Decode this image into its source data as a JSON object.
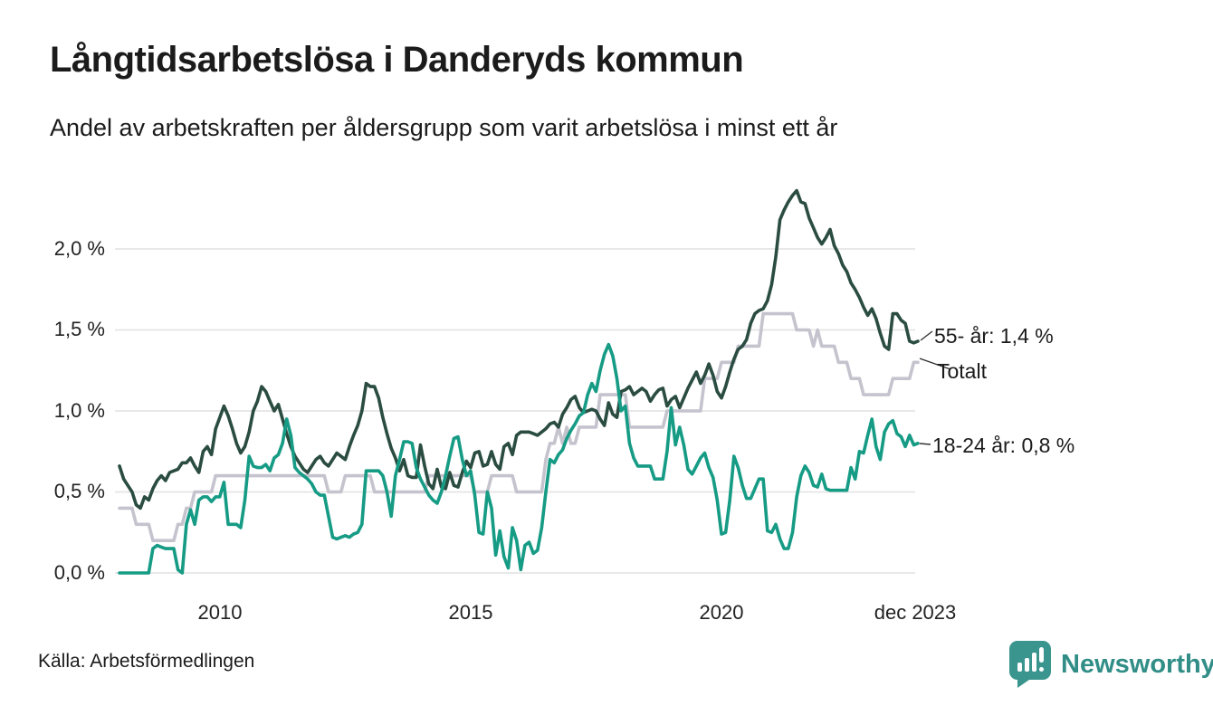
{
  "header": {
    "title": "Långtidsarbetslösa i Danderyds kommun",
    "subtitle": "Andel av arbetskraften per åldersgrupp som varit arbetslösa i minst ett år"
  },
  "chart_data": {
    "type": "line",
    "title": "Långtidsarbetslösa i Danderyds kommun",
    "subtitle": "Andel av arbetskraften per åldersgrupp som varit arbetslösa i minst ett år",
    "unit": "% av arbetskraften",
    "x_start": "2008-01",
    "x_end": "2023-12",
    "x_tick_labels": [
      "2010",
      "2015",
      "2020",
      "dec 2023"
    ],
    "y_tick_labels": [
      "0,0 %",
      "0,5 %",
      "1,0 %",
      "1,5 %",
      "2,0 %"
    ],
    "y_grid": [
      0,
      0.5,
      1.0,
      1.5,
      2.0
    ],
    "ylim": [
      0,
      2.45
    ],
    "grid": "horizontal",
    "legend_position": "right-end-labels",
    "series": [
      {
        "name": "Totalt",
        "color": "#c5c3cd",
        "end_label": "Totalt",
        "end_value": null,
        "values": [
          0.4,
          0.4,
          0.4,
          0.4,
          0.3,
          0.3,
          0.3,
          0.3,
          0.2,
          0.2,
          0.2,
          0.2,
          0.2,
          0.2,
          0.3,
          0.3,
          0.4,
          0.4,
          0.5,
          0.5,
          0.5,
          0.5,
          0.5,
          0.6,
          0.6,
          0.6,
          0.6,
          0.6,
          0.6,
          0.6,
          0.6,
          0.6,
          0.6,
          0.6,
          0.6,
          0.6,
          0.6,
          0.6,
          0.6,
          0.6,
          0.6,
          0.6,
          0.6,
          0.6,
          0.6,
          0.6,
          0.6,
          0.6,
          0.6,
          0.6,
          0.5,
          0.5,
          0.5,
          0.5,
          0.6,
          0.6,
          0.6,
          0.6,
          0.6,
          0.6,
          0.6,
          0.5,
          0.5,
          0.5,
          0.5,
          0.5,
          0.5,
          0.5,
          0.5,
          0.5,
          0.5,
          0.5,
          0.5,
          0.5,
          0.6,
          0.6,
          0.6,
          0.6,
          0.6,
          0.6,
          0.6,
          0.6,
          0.6,
          0.6,
          0.6,
          0.5,
          0.5,
          0.5,
          0.5,
          0.6,
          0.6,
          0.6,
          0.6,
          0.6,
          0.6,
          0.5,
          0.5,
          0.5,
          0.5,
          0.5,
          0.5,
          0.5,
          0.7,
          0.8,
          0.8,
          0.9,
          0.8,
          0.9,
          0.8,
          0.8,
          0.9,
          0.9,
          0.9,
          0.9,
          0.9,
          1.1,
          1.1,
          1.1,
          1.1,
          1.1,
          1.1,
          1.1,
          0.9,
          0.9,
          0.9,
          0.9,
          0.9,
          0.9,
          0.9,
          0.9,
          0.9,
          1.0,
          1.0,
          1.0,
          1.0,
          1.0,
          1.0,
          1.0,
          1.0,
          1.0,
          1.2,
          1.2,
          1.2,
          1.2,
          1.3,
          1.3,
          1.3,
          1.3,
          1.4,
          1.4,
          1.4,
          1.4,
          1.4,
          1.4,
          1.6,
          1.6,
          1.6,
          1.6,
          1.6,
          1.6,
          1.6,
          1.6,
          1.5,
          1.5,
          1.5,
          1.5,
          1.4,
          1.5,
          1.4,
          1.4,
          1.4,
          1.4,
          1.3,
          1.3,
          1.3,
          1.2,
          1.2,
          1.2,
          1.1,
          1.1,
          1.1,
          1.1,
          1.1,
          1.1,
          1.1,
          1.2,
          1.2,
          1.2,
          1.2,
          1.2,
          1.3,
          1.3
        ]
      },
      {
        "name": "55- år",
        "color": "#2a4c41",
        "end_label": "55- år: 1,4 %",
        "end_value": 1.4,
        "values": [
          0.66,
          0.58,
          0.54,
          0.5,
          0.42,
          0.4,
          0.47,
          0.45,
          0.52,
          0.57,
          0.6,
          0.57,
          0.62,
          0.63,
          0.64,
          0.68,
          0.68,
          0.71,
          0.66,
          0.62,
          0.75,
          0.78,
          0.73,
          0.89,
          0.96,
          1.03,
          0.97,
          0.89,
          0.8,
          0.74,
          0.78,
          0.87,
          1.0,
          1.06,
          1.15,
          1.12,
          1.06,
          1.0,
          1.04,
          0.95,
          0.86,
          0.78,
          0.72,
          0.68,
          0.64,
          0.62,
          0.66,
          0.7,
          0.72,
          0.68,
          0.66,
          0.7,
          0.74,
          0.72,
          0.7,
          0.78,
          0.85,
          0.91,
          1.0,
          1.17,
          1.15,
          1.15,
          1.08,
          0.96,
          0.86,
          0.77,
          0.71,
          0.63,
          0.7,
          0.6,
          0.59,
          0.59,
          0.79,
          0.66,
          0.55,
          0.52,
          0.64,
          0.53,
          0.52,
          0.62,
          0.54,
          0.53,
          0.62,
          0.69,
          0.65,
          0.74,
          0.75,
          0.66,
          0.67,
          0.75,
          0.67,
          0.64,
          0.78,
          0.8,
          0.73,
          0.85,
          0.87,
          0.87,
          0.87,
          0.86,
          0.85,
          0.87,
          0.89,
          0.92,
          0.93,
          0.9,
          0.98,
          1.02,
          1.07,
          1.09,
          1.02,
          0.99,
          1.0,
          1.01,
          1.0,
          0.95,
          0.91,
          1.05,
          0.98,
          0.96,
          1.12,
          1.13,
          1.15,
          1.1,
          1.12,
          1.14,
          1.12,
          1.06,
          1.1,
          1.13,
          1.14,
          1.03,
          1.07,
          1.09,
          1.02,
          1.08,
          1.14,
          1.19,
          1.24,
          1.17,
          1.22,
          1.29,
          1.22,
          1.12,
          1.08,
          1.15,
          1.24,
          1.32,
          1.38,
          1.4,
          1.44,
          1.54,
          1.6,
          1.62,
          1.63,
          1.68,
          1.78,
          1.95,
          2.18,
          2.24,
          2.29,
          2.33,
          2.36,
          2.29,
          2.28,
          2.19,
          2.13,
          2.07,
          2.03,
          2.07,
          2.12,
          2.02,
          1.97,
          1.9,
          1.86,
          1.79,
          1.75,
          1.7,
          1.64,
          1.59,
          1.63,
          1.57,
          1.48,
          1.4,
          1.38,
          1.6,
          1.6,
          1.56,
          1.54,
          1.43,
          1.42,
          1.43
        ]
      },
      {
        "name": "18-24 år",
        "color": "#169b85",
        "end_label": "18-24 år: 0,8 %",
        "end_value": 0.8,
        "values": [
          0.0,
          0.0,
          0.0,
          0.0,
          0.0,
          0.0,
          0.0,
          0.0,
          0.15,
          0.17,
          0.16,
          0.15,
          0.15,
          0.15,
          0.02,
          0.0,
          0.3,
          0.39,
          0.3,
          0.45,
          0.47,
          0.47,
          0.44,
          0.47,
          0.47,
          0.56,
          0.3,
          0.3,
          0.3,
          0.28,
          0.45,
          0.72,
          0.66,
          0.65,
          0.65,
          0.67,
          0.63,
          0.71,
          0.73,
          0.8,
          0.95,
          0.85,
          0.65,
          0.62,
          0.6,
          0.58,
          0.55,
          0.5,
          0.48,
          0.48,
          0.35,
          0.22,
          0.21,
          0.22,
          0.23,
          0.22,
          0.24,
          0.25,
          0.3,
          0.63,
          0.63,
          0.63,
          0.63,
          0.6,
          0.5,
          0.35,
          0.6,
          0.7,
          0.81,
          0.81,
          0.8,
          0.65,
          0.58,
          0.53,
          0.48,
          0.45,
          0.43,
          0.5,
          0.6,
          0.72,
          0.83,
          0.84,
          0.7,
          0.6,
          0.63,
          0.48,
          0.25,
          0.24,
          0.5,
          0.4,
          0.11,
          0.26,
          0.1,
          0.03,
          0.28,
          0.2,
          0.02,
          0.17,
          0.19,
          0.12,
          0.14,
          0.28,
          0.5,
          0.7,
          0.68,
          0.73,
          0.76,
          0.83,
          0.88,
          0.92,
          0.97,
          0.99,
          1.1,
          1.17,
          1.12,
          1.25,
          1.35,
          1.41,
          1.34,
          1.2,
          1.0,
          1.03,
          0.8,
          0.71,
          0.66,
          0.66,
          0.66,
          0.66,
          0.58,
          0.58,
          0.58,
          0.75,
          1.02,
          0.79,
          0.9,
          0.79,
          0.64,
          0.61,
          0.66,
          0.71,
          0.74,
          0.65,
          0.59,
          0.45,
          0.24,
          0.25,
          0.45,
          0.72,
          0.65,
          0.54,
          0.46,
          0.46,
          0.52,
          0.58,
          0.58,
          0.26,
          0.25,
          0.3,
          0.21,
          0.15,
          0.15,
          0.25,
          0.47,
          0.6,
          0.66,
          0.62,
          0.54,
          0.53,
          0.61,
          0.52,
          0.51,
          0.51,
          0.51,
          0.51,
          0.51,
          0.65,
          0.58,
          0.75,
          0.74,
          0.85,
          0.95,
          0.78,
          0.7,
          0.87,
          0.92,
          0.94,
          0.86,
          0.84,
          0.78,
          0.85,
          0.79,
          0.8
        ]
      }
    ]
  },
  "footer": {
    "source": "Källa: Arbetsförmedlingen",
    "brand": "Newsworthy"
  },
  "colors": {
    "series_55": "#2a4c41",
    "series_total": "#c5c3cd",
    "series_18_24": "#169b85",
    "gridline": "#e5e5e5",
    "brand_teal": "#318e87",
    "text": "#1b1b1b"
  }
}
